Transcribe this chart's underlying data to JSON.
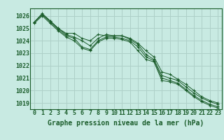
{
  "title": "Graphe pression niveau de la mer (hPa)",
  "background_color": "#c8eae2",
  "grid_color": "#aed0c8",
  "line_color": "#1a5c2a",
  "hours": [
    0,
    1,
    2,
    3,
    4,
    5,
    6,
    7,
    8,
    9,
    10,
    11,
    12,
    13,
    14,
    15,
    16,
    17,
    18,
    19,
    20,
    21,
    22,
    23
  ],
  "series1": [
    1025.5,
    1026.1,
    1025.6,
    1025.0,
    1024.5,
    1024.3,
    1024.0,
    1023.6,
    1024.2,
    1024.5,
    1024.4,
    1024.4,
    1024.1,
    1023.7,
    1022.9,
    1022.5,
    1021.2,
    1021.0,
    1020.8,
    1020.3,
    1019.8,
    1019.4,
    1019.1,
    1018.9
  ],
  "series2": [
    1025.5,
    1026.1,
    1025.5,
    1024.9,
    1024.4,
    1024.2,
    1023.5,
    1023.3,
    1024.0,
    1024.3,
    1024.3,
    1024.2,
    1024.0,
    1023.5,
    1022.7,
    1022.4,
    1021.0,
    1020.8,
    1020.6,
    1020.1,
    1019.6,
    1019.2,
    1018.9,
    1018.7
  ],
  "series3": [
    1025.4,
    1026.0,
    1025.4,
    1024.8,
    1024.3,
    1024.0,
    1023.4,
    1023.2,
    1023.9,
    1024.2,
    1024.2,
    1024.1,
    1023.9,
    1023.2,
    1022.5,
    1022.3,
    1020.8,
    1020.7,
    1020.5,
    1020.0,
    1019.5,
    1019.1,
    1018.8,
    1018.6
  ],
  "series4": [
    1025.5,
    1026.2,
    1025.6,
    1025.0,
    1024.6,
    1024.6,
    1024.2,
    1024.0,
    1024.5,
    1024.4,
    1024.4,
    1024.4,
    1024.2,
    1023.8,
    1023.2,
    1022.7,
    1021.5,
    1021.3,
    1020.9,
    1020.5,
    1020.0,
    1019.5,
    1019.2,
    1019.0
  ],
  "ylim": [
    1018.5,
    1026.6
  ],
  "yticks": [
    1019,
    1020,
    1021,
    1022,
    1023,
    1024,
    1025,
    1026
  ],
  "tick_fontsize": 6.0,
  "title_fontsize": 7.0
}
